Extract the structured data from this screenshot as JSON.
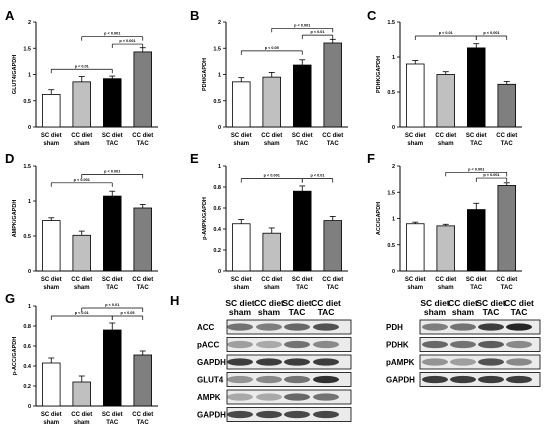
{
  "colors": {
    "sc_sham": "#ffffff",
    "cc_sham": "#c0c0c0",
    "sc_tac": "#000000",
    "cc_tac": "#7f7f7f"
  },
  "chart_data": [
    {
      "letter": "A",
      "type": "bar",
      "ylabel": "GLUT4/GAPDH",
      "categories": [
        [
          "SC diet",
          "sham"
        ],
        [
          "CC diet",
          "sham"
        ],
        [
          "SC diet",
          "TAC"
        ],
        [
          "CC diet",
          "TAC"
        ]
      ],
      "values": [
        0.62,
        0.86,
        0.92,
        1.43
      ],
      "errors": [
        0.09,
        0.1,
        0.05,
        0.08
      ],
      "ylim": [
        0,
        2
      ],
      "yticks": [
        0,
        0.5,
        1,
        1.5,
        2
      ],
      "annotations": [
        {
          "text": "p < 0.01",
          "from": 0,
          "to": 2,
          "y": 1.1
        },
        {
          "text": "p < 0.001",
          "from": 1,
          "to": 3,
          "y": 1.72
        },
        {
          "text": "p < 0.001",
          "from": 2,
          "to": 3,
          "y": 1.58
        }
      ]
    },
    {
      "letter": "B",
      "type": "bar",
      "ylabel": "PDH/GAPDH",
      "categories": [
        [
          "SC diet",
          "sham"
        ],
        [
          "CC diet",
          "sham"
        ],
        [
          "SC diet",
          "TAC"
        ],
        [
          "CC diet",
          "TAC"
        ]
      ],
      "values": [
        0.86,
        0.95,
        1.18,
        1.6
      ],
      "errors": [
        0.08,
        0.09,
        0.1,
        0.07
      ],
      "ylim": [
        0,
        2
      ],
      "yticks": [
        0,
        0.5,
        1,
        1.5,
        2
      ],
      "annotations": [
        {
          "text": "p < 0.05",
          "from": 0,
          "to": 2,
          "y": 1.45
        },
        {
          "text": "p < 0.001",
          "from": 1,
          "to": 3,
          "y": 1.88
        },
        {
          "text": "p < 0.01",
          "from": 2,
          "to": 3,
          "y": 1.75
        }
      ]
    },
    {
      "letter": "C",
      "type": "bar",
      "ylabel": "PDHK/GAPDH",
      "categories": [
        [
          "SC diet",
          "sham"
        ],
        [
          "CC diet",
          "sham"
        ],
        [
          "SC diet",
          "TAC"
        ],
        [
          "CC diet",
          "TAC"
        ]
      ],
      "values": [
        0.9,
        0.75,
        1.13,
        0.61
      ],
      "errors": [
        0.05,
        0.04,
        0.06,
        0.04
      ],
      "ylim": [
        0,
        1.5
      ],
      "yticks": [
        0,
        0.5,
        1,
        1.5
      ],
      "annotations": [
        {
          "text": "p < 0.01",
          "from": 0,
          "to": 2,
          "y": 1.3
        },
        {
          "text": "p < 0.001",
          "from": 2,
          "to": 3,
          "y": 1.3
        }
      ]
    },
    {
      "letter": "D",
      "type": "bar",
      "ylabel": "AMPK/GAPDH",
      "categories": [
        [
          "SC diet",
          "sham"
        ],
        [
          "CC diet",
          "sham"
        ],
        [
          "SC diet",
          "TAC"
        ],
        [
          "CC diet",
          "TAC"
        ]
      ],
      "values": [
        0.72,
        0.51,
        1.07,
        0.9
      ],
      "errors": [
        0.04,
        0.06,
        0.07,
        0.05
      ],
      "ylim": [
        0,
        1.5
      ],
      "yticks": [
        0,
        0.5,
        1,
        1.5
      ],
      "annotations": [
        {
          "text": "p < 0.001",
          "from": 0,
          "to": 2,
          "y": 1.26
        },
        {
          "text": "p < 0.001",
          "from": 1,
          "to": 3,
          "y": 1.38
        }
      ]
    },
    {
      "letter": "E",
      "type": "bar",
      "ylabel": "p-AMPK/GAPDH",
      "categories": [
        [
          "SC diet",
          "sham"
        ],
        [
          "CC diet",
          "sham"
        ],
        [
          "SC diet",
          "TAC"
        ],
        [
          "CC diet",
          "TAC"
        ]
      ],
      "values": [
        0.45,
        0.36,
        0.76,
        0.48
      ],
      "errors": [
        0.04,
        0.05,
        0.05,
        0.04
      ],
      "ylim": [
        0,
        1
      ],
      "yticks": [
        0,
        0.2,
        0.4,
        0.6,
        0.8,
        1
      ],
      "annotations": [
        {
          "text": "p < 0.001",
          "from": 0,
          "to": 2,
          "y": 0.88
        },
        {
          "text": "p < 0.01",
          "from": 2,
          "to": 3,
          "y": 0.88
        }
      ]
    },
    {
      "letter": "F",
      "type": "bar",
      "ylabel": "ACC/GAPDH",
      "categories": [
        [
          "SC diet",
          "sham"
        ],
        [
          "CC diet",
          "sham"
        ],
        [
          "SC diet",
          "TAC"
        ],
        [
          "CC diet",
          "TAC"
        ]
      ],
      "values": [
        0.9,
        0.86,
        1.17,
        1.63
      ],
      "errors": [
        0.03,
        0.03,
        0.12,
        0.05
      ],
      "ylim": [
        0,
        2
      ],
      "yticks": [
        0,
        0.5,
        1,
        1.5,
        2
      ],
      "annotations": [
        {
          "text": "p < 0.001",
          "from": 1,
          "to": 3,
          "y": 1.88
        },
        {
          "text": "p < 0.001",
          "from": 2,
          "to": 3,
          "y": 1.77
        }
      ]
    },
    {
      "letter": "G",
      "type": "bar",
      "ylabel": "p-ACC/GAPDH",
      "categories": [
        [
          "SC diet",
          "sham"
        ],
        [
          "CC diet",
          "sham"
        ],
        [
          "SC diet",
          "TAC"
        ],
        [
          "CC diet",
          "TAC"
        ]
      ],
      "values": [
        0.43,
        0.24,
        0.76,
        0.51
      ],
      "errors": [
        0.05,
        0.06,
        0.07,
        0.04
      ],
      "ylim": [
        0,
        1
      ],
      "yticks": [
        0,
        0.2,
        0.4,
        0.6,
        0.8,
        1
      ],
      "annotations": [
        {
          "text": "p < 0.01",
          "from": 0,
          "to": 2,
          "y": 0.9
        },
        {
          "text": "p < 0.01",
          "from": 1,
          "to": 3,
          "y": 0.98
        },
        {
          "text": "p < 0.05",
          "from": 2,
          "to": 3,
          "y": 0.9
        }
      ]
    }
  ],
  "blots": {
    "letter": "H",
    "columns": [
      [
        "SC diet",
        "sham"
      ],
      [
        "CC diet",
        "sham"
      ],
      [
        "SC diet",
        "TAC"
      ],
      [
        "CC diet",
        "TAC"
      ]
    ],
    "left_rows": [
      "ACC",
      "pACC",
      "GAPDH",
      "GLUT4",
      "AMPK",
      "GAPDH"
    ],
    "right_rows": [
      "PDH",
      "PDHK",
      "pAMPK",
      "GAPDH"
    ]
  }
}
